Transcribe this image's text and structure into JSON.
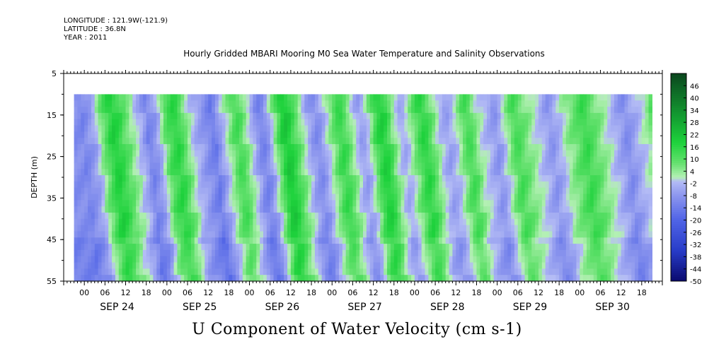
{
  "header": {
    "longitude": "LONGITUDE : 121.9W(-121.9)",
    "latitude": "LATITUDE : 36.8N",
    "year": "YEAR : 2011",
    "title": "Hourly Gridded MBARI Mooring M0 Sea Water Temperature and Salinity Observations"
  },
  "chart_data": {
    "type": "heatmap",
    "title": "Hourly Gridded MBARI Mooring M0 Sea Water Temperature and Salinity Observations",
    "xlabel": "U Component of Water Velocity (cm s-1)",
    "ylabel": "DEPTH (m)",
    "y_ticks": [
      "5",
      "15",
      "25",
      "35",
      "45",
      "55"
    ],
    "ylim": [
      55,
      5
    ],
    "hour_tick_labels": [
      "00",
      "06",
      "12",
      "18",
      "00",
      "06",
      "12",
      "18",
      "00",
      "06",
      "12",
      "18",
      "00",
      "06",
      "12",
      "18",
      "00",
      "06",
      "12",
      "18",
      "00",
      "06",
      "12",
      "18",
      "00",
      "06",
      "12",
      "18"
    ],
    "day_labels": [
      "SEP 24",
      "SEP 25",
      "SEP 26",
      "SEP 27",
      "SEP 28",
      "SEP 29",
      "SEP 30"
    ],
    "colorbar_labels": [
      "46",
      "40",
      "34",
      "28",
      "22",
      "16",
      "10",
      "4",
      "-2",
      "-8",
      "-14",
      "-20",
      "-26",
      "-32",
      "-38",
      "-44",
      "-50"
    ],
    "colorbar_range": [
      -50,
      52
    ],
    "data_depth_range": [
      10,
      55
    ],
    "data_start": "SEP 23 ~21:00",
    "data_end": "SEP 30 ~23:00",
    "colors": {
      "negative": "#9aa6ee",
      "positive": "#33d24a",
      "light_pos": "#a6eea6"
    },
    "columns_hourly_approx": [
      -10,
      -12,
      -10,
      -8,
      -6,
      -2,
      4,
      8,
      12,
      16,
      18,
      16,
      14,
      10,
      8,
      4,
      2,
      -2,
      -4,
      -8,
      -12,
      -10,
      -8,
      -4,
      2,
      8,
      12,
      14,
      16,
      14,
      10,
      6,
      2,
      -2,
      -4,
      -6,
      -8,
      -10,
      -12,
      -14,
      -10,
      -6,
      -2,
      2,
      6,
      10,
      12,
      10,
      6,
      2,
      -2,
      -6,
      -10,
      -12,
      -10,
      -6,
      0,
      6,
      12,
      18,
      20,
      18,
      14,
      10,
      6,
      2,
      -2,
      -6,
      -8,
      -10,
      -8,
      -4,
      0,
      4,
      8,
      12,
      14,
      12,
      8,
      4,
      0,
      -4,
      -6,
      -4,
      0,
      6,
      12,
      16,
      18,
      16,
      12,
      6,
      2,
      -2,
      -4,
      -2,
      2,
      6,
      10,
      14,
      16,
      14,
      10,
      6,
      2,
      -2,
      -4,
      -6,
      -4,
      -2,
      2,
      6,
      10,
      12,
      10,
      6,
      2,
      0,
      -2,
      -4,
      -6,
      -8,
      -6,
      -2,
      2,
      6,
      10,
      12,
      10,
      8,
      6,
      4,
      2,
      0,
      -2,
      -4,
      -6,
      -8,
      -6,
      -4,
      -2,
      2,
      4,
      6,
      8,
      10,
      12,
      14,
      12,
      10,
      8,
      6,
      4,
      2,
      0,
      -2,
      -4,
      -6,
      -8,
      -10,
      -8,
      -6,
      -4,
      -2,
      0,
      2,
      6,
      10
    ]
  }
}
